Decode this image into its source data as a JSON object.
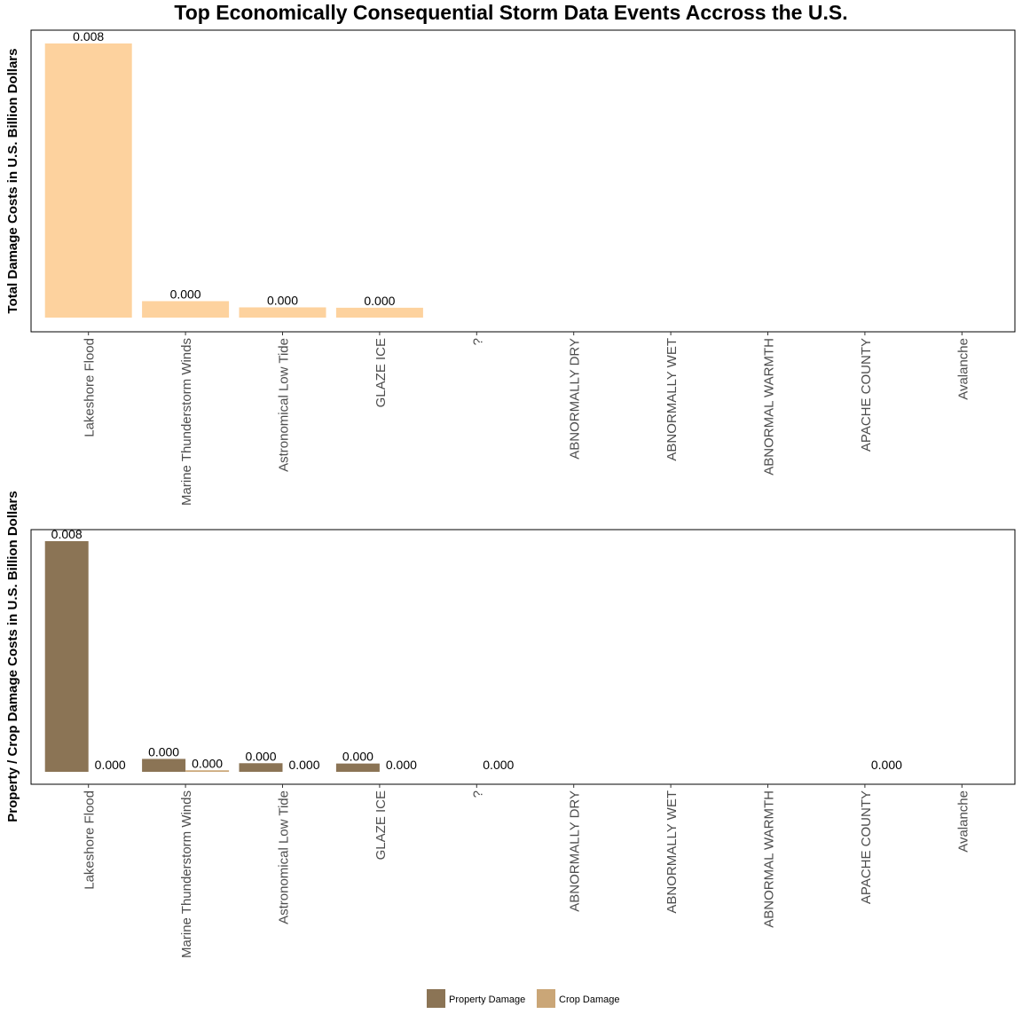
{
  "chart_data": [
    {
      "type": "bar",
      "title": "Top Economically Consequential Storm Data Events Accross the U.S.",
      "xlabel": "",
      "ylabel": "Total Damage Costs in U.S. Billion Dollars",
      "categories": [
        "Lakeshore Flood",
        "Marine Thunderstorm Winds",
        "Astronomical Low Tide",
        "GLAZE ICE",
        "?",
        "ABNORMALLY DRY",
        "ABNORMALLY WET",
        "ABNORMAL WARMTH",
        "APACHE COUNTY",
        "Avalanche"
      ],
      "values": [
        0.0075,
        0.00045,
        0.00028,
        0.00027,
        null,
        null,
        null,
        null,
        null,
        null
      ],
      "data_labels": [
        "0.008",
        "0.000",
        "0.000",
        "0.000",
        "",
        "",
        "",
        "",
        "",
        ""
      ],
      "ylim": [
        0,
        0.0075
      ],
      "grid": false,
      "colors": {
        "bar": "#fdd29e"
      }
    },
    {
      "type": "bar",
      "xlabel": "",
      "ylabel": "Property / Crop Damage Costs in U.S. Billion Dollars",
      "categories": [
        "Lakeshore Flood",
        "Marine Thunderstorm Winds",
        "Astronomical Low Tide",
        "GLAZE ICE",
        "?",
        "ABNORMALLY DRY",
        "ABNORMALLY WET",
        "ABNORMAL WARMTH",
        "APACHE COUNTY",
        "Avalanche"
      ],
      "series": [
        {
          "name": "Property Damage",
          "color": "#8b7455",
          "values": [
            0.0075,
            0.00042,
            0.00028,
            0.00027,
            null,
            null,
            null,
            null,
            null,
            null
          ],
          "data_labels": [
            "0.008",
            "0.000",
            "0.000",
            "0.000",
            "",
            "",
            "",
            "",
            "",
            ""
          ]
        },
        {
          "name": "Crop Damage",
          "color": "#caa677",
          "values": [
            0,
            5e-05,
            0,
            0,
            0,
            null,
            null,
            null,
            0,
            null
          ],
          "data_labels": [
            "0.000",
            "0.000",
            "0.000",
            "0.000",
            "0.000",
            "",
            "",
            "",
            "0.000",
            ""
          ]
        }
      ],
      "ylim": [
        0,
        0.0075
      ],
      "grid": false,
      "legend": "bottom"
    }
  ]
}
